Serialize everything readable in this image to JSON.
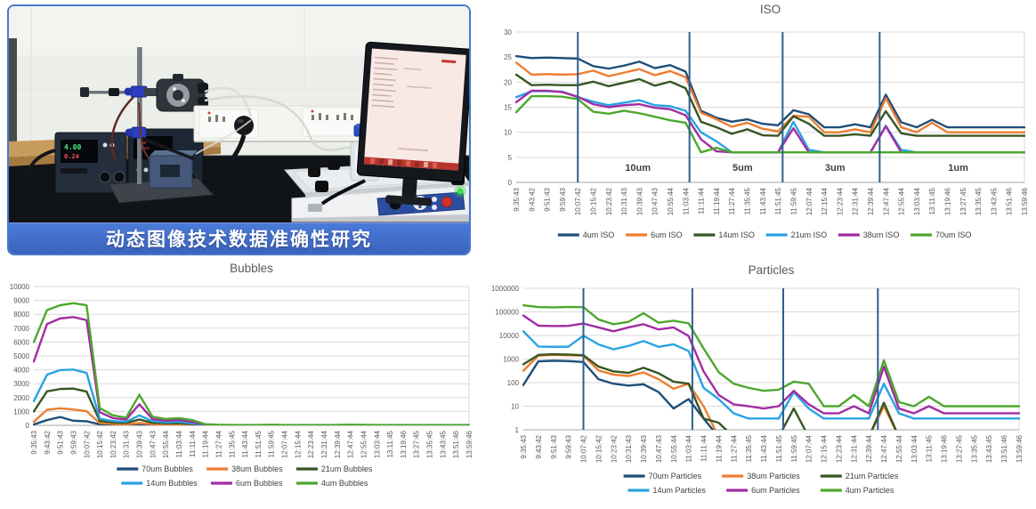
{
  "photo": {
    "caption": "动态图像技术数据准确性研究",
    "banner_color": "#3F69C8",
    "psu_display_green": "4.00",
    "psu_display_red": "0.24"
  },
  "chart_data": {
    "type": "line",
    "x_labels": [
      "9:35:43",
      "9:43:42",
      "9:51:43",
      "9:59:43",
      "10:07:42",
      "10:15:42",
      "10:23:42",
      "10:31:43",
      "10:39:43",
      "10:47:43",
      "10:55:44",
      "11:03:44",
      "11:11:44",
      "11:19:44",
      "11:27:44",
      "11:35:45",
      "11:43:44",
      "11:51:45",
      "11:59:45",
      "12:07:44",
      "12:15:44",
      "12:23:44",
      "12:31:44",
      "12:39:44",
      "12:47:44",
      "12:55:44",
      "13:03:44",
      "13:11:45",
      "13:19:46",
      "13:27:45",
      "13:35:45",
      "13:43:45",
      "13:51:46",
      "13:59:46"
    ],
    "charts": [
      {
        "id": "iso",
        "title": "ISO",
        "yscale": "linear",
        "ylim": [
          0,
          30
        ],
        "yticks": [
          0,
          5,
          10,
          15,
          20,
          25,
          30
        ],
        "legend_rows": 1,
        "markers": {
          "color": "#2E5F8C",
          "positions": [
            4,
            11.25,
            17.3,
            23.6
          ]
        },
        "sections": [
          {
            "label": "10um",
            "pos": 7.9
          },
          {
            "label": "5um",
            "pos": 14.7
          },
          {
            "label": "3um",
            "pos": 20.7
          },
          {
            "label": "1um",
            "pos": 28.7
          }
        ],
        "series": [
          {
            "name": "4um ISO",
            "color": "#1F4E79",
            "values": [
              25.2,
              24.8,
              24.9,
              24.8,
              24.7,
              23.2,
              22.7,
              23.3,
              24.1,
              22.8,
              23.4,
              22.1,
              14.3,
              12.9,
              12.1,
              12.6,
              11.7,
              11.4,
              14.4,
              13.6,
              11,
              11,
              11.6,
              11,
              17.5,
              12,
              11,
              12.5,
              11,
              11,
              11,
              11,
              11,
              11
            ]
          },
          {
            "name": "6um ISO",
            "color": "#ED7D31",
            "values": [
              23.9,
              21.5,
              21.6,
              21.5,
              21.6,
              22.3,
              21.2,
              21.9,
              22.6,
              21.4,
              22.2,
              21,
              13.9,
              12.6,
              11.1,
              11.9,
              10.7,
              10.2,
              13.3,
              13.1,
              10,
              10,
              10.6,
              10,
              16.8,
              11,
              10,
              11.9,
              10,
              10,
              10,
              10,
              10,
              10
            ]
          },
          {
            "name": "14um ISO",
            "color": "#375623",
            "values": [
              21.5,
              19.4,
              19.5,
              19.4,
              19.4,
              20.1,
              19.2,
              19.9,
              20.6,
              19.3,
              20.1,
              18.8,
              12.1,
              11,
              9.7,
              10.6,
              9.4,
              9.3,
              13.2,
              11.7,
              9.3,
              9.3,
              9.6,
              9.3,
              14.2,
              9.8,
              9.3,
              9.3,
              9.3,
              9.3,
              9.3,
              9.3,
              9.3,
              9.3
            ]
          },
          {
            "name": "21um ISO",
            "color": "#29A3E1",
            "values": [
              17,
              18.2,
              18.2,
              18.1,
              17,
              16.1,
              15.4,
              15.9,
              16.4,
              15.4,
              15.2,
              14.3,
              10,
              8.2,
              6,
              6,
              6,
              6,
              12.1,
              6.5,
              6,
              6,
              6,
              6,
              11.3,
              6.5,
              6,
              6,
              6,
              6,
              6,
              6,
              6,
              6
            ]
          },
          {
            "name": "38um ISO",
            "color": "#A32CA3",
            "values": [
              16,
              18.3,
              18.3,
              18,
              17.1,
              15.6,
              15,
              15.4,
              15.6,
              14.9,
              14.6,
              13.4,
              8.6,
              6.2,
              6,
              6,
              6,
              6,
              10.8,
              6,
              6,
              6,
              6,
              6,
              11.2,
              6,
              6,
              6,
              6,
              6,
              6,
              6,
              6,
              6
            ]
          },
          {
            "name": "70um ISO",
            "color": "#4EA72E",
            "values": [
              14,
              17.2,
              17.2,
              17.1,
              16.6,
              14.1,
              13.7,
              14.3,
              13.8,
              13.1,
              12.4,
              11.9,
              6,
              6.9,
              6,
              6,
              6,
              6,
              6,
              6,
              6,
              6,
              6,
              6,
              6,
              6,
              6,
              6,
              6,
              6,
              6,
              6,
              6,
              6
            ]
          }
        ]
      },
      {
        "id": "bubbles",
        "title": "Bubbles",
        "yscale": "linear",
        "ylim": [
          0,
          10000
        ],
        "yticks": [
          0,
          1000,
          2000,
          3000,
          4000,
          5000,
          6000,
          7000,
          8000,
          9000,
          10000
        ],
        "legend_rows": 2,
        "series": [
          {
            "name": "70um Bubbles",
            "color": "#1F4E79",
            "values": [
              60,
              380,
              600,
              330,
              290,
              70,
              35,
              25,
              60,
              25,
              18,
              15,
              8,
              3,
              2,
              2,
              2,
              2,
              3,
              2,
              2,
              2,
              2,
              2,
              2,
              2,
              2,
              2,
              2,
              2,
              2,
              2,
              2,
              2
            ]
          },
          {
            "name": "38um Bubbles",
            "color": "#ED7D31",
            "values": [
              260,
              1120,
              1230,
              1140,
              1020,
              160,
              100,
              80,
              160,
              85,
              60,
              70,
              45,
              10,
              5,
              4,
              4,
              4,
              6,
              4,
              4,
              4,
              4,
              4,
              5,
              4,
              4,
              4,
              4,
              4,
              4,
              4,
              4,
              4
            ]
          },
          {
            "name": "21um Bubbles",
            "color": "#375623",
            "values": [
              1000,
              2450,
              2620,
              2650,
              2430,
              320,
              210,
              180,
              420,
              190,
              140,
              160,
              100,
              22,
              10,
              8,
              8,
              8,
              12,
              8,
              8,
              8,
              8,
              8,
              10,
              8,
              8,
              8,
              8,
              8,
              8,
              8,
              8,
              8
            ]
          },
          {
            "name": "14um Bubbles",
            "color": "#29A3E1",
            "values": [
              1750,
              3650,
              3980,
              4020,
              3780,
              480,
              310,
              260,
              720,
              300,
              210,
              260,
              150,
              35,
              15,
              12,
              12,
              12,
              18,
              12,
              12,
              12,
              12,
              12,
              15,
              12,
              12,
              12,
              12,
              12,
              12,
              12,
              12,
              12
            ]
          },
          {
            "name": "6um Bubbles",
            "color": "#A32CA3",
            "values": [
              4600,
              7300,
              7700,
              7800,
              7580,
              950,
              520,
              420,
              1520,
              450,
              330,
              380,
              250,
              55,
              25,
              18,
              18,
              18,
              28,
              18,
              18,
              18,
              18,
              18,
              30,
              20,
              18,
              18,
              18,
              18,
              18,
              18,
              18,
              18
            ]
          },
          {
            "name": "4um Bubbles",
            "color": "#4EA72E",
            "values": [
              6000,
              8300,
              8650,
              8800,
              8650,
              1250,
              720,
              560,
              2200,
              620,
              460,
              520,
              380,
              85,
              40,
              30,
              28,
              28,
              45,
              30,
              28,
              28,
              30,
              28,
              55,
              35,
              28,
              28,
              30,
              28,
              28,
              28,
              28,
              28
            ]
          }
        ]
      },
      {
        "id": "particles",
        "title": "Particles",
        "yscale": "log",
        "ylim": [
          1,
          1000000
        ],
        "yticks": [
          1,
          10,
          100,
          1000,
          10000,
          100000,
          1000000
        ],
        "legend_rows": 2,
        "markers": {
          "color": "#2E5F8C",
          "positions": [
            4,
            11.25,
            17.3,
            23.6
          ]
        },
        "series": [
          {
            "name": "70um Particles",
            "color": "#1F4E79",
            "values": [
              80,
              800,
              850,
              820,
              750,
              140,
              90,
              75,
              85,
              40,
              8,
              20,
              3,
              0.5,
              null,
              null,
              null,
              null,
              null,
              null,
              null,
              null,
              null,
              null,
              null,
              null,
              null,
              null,
              null,
              null,
              null,
              null,
              null,
              null
            ]
          },
          {
            "name": "38um Particles",
            "color": "#ED7D31",
            "values": [
              320,
              1400,
              1500,
              1450,
              1380,
              330,
              220,
              190,
              270,
              140,
              55,
              90,
              10,
              0.5,
              null,
              null,
              null,
              null,
              null,
              null,
              null,
              null,
              null,
              0.5,
              10,
              0.5,
              null,
              null,
              null,
              null,
              null,
              null,
              null,
              null
            ]
          },
          {
            "name": "21um Particles",
            "color": "#375623",
            "values": [
              600,
              1500,
              1600,
              1550,
              1450,
              480,
              300,
              260,
              430,
              250,
              110,
              90,
              3,
              2,
              0.5,
              null,
              null,
              0.5,
              8,
              0.5,
              null,
              null,
              null,
              0.5,
              14,
              0.5,
              null,
              null,
              null,
              null,
              null,
              null,
              null,
              null
            ]
          },
          {
            "name": "14um Particles",
            "color": "#29A3E1",
            "values": [
              15000,
              3400,
              3300,
              3350,
              9800,
              4200,
              2600,
              3600,
              5800,
              3300,
              4200,
              2200,
              60,
              20,
              5,
              3,
              3,
              3,
              40,
              8,
              3,
              3,
              3,
              3,
              90,
              5,
              3,
              3,
              3,
              3,
              3,
              3,
              3,
              3
            ]
          },
          {
            "name": "6um Particles",
            "color": "#A32CA3",
            "values": [
              70000,
              26000,
              25000,
              25500,
              32000,
              22000,
              15000,
              22000,
              30000,
              18000,
              22000,
              9500,
              300,
              30,
              12,
              10,
              8,
              10,
              45,
              12,
              5,
              5,
              10,
              5,
              480,
              8,
              5,
              10,
              5,
              5,
              5,
              5,
              5,
              5
            ]
          },
          {
            "name": "4um Particles",
            "color": "#4EA72E",
            "values": [
              190000,
              160000,
              155000,
              162000,
              158000,
              48000,
              30000,
              38000,
              88000,
              35000,
              42000,
              33000,
              2800,
              280,
              90,
              60,
              45,
              50,
              110,
              90,
              10,
              10,
              30,
              10,
              880,
              15,
              10,
              25,
              10,
              10,
              10,
              10,
              10,
              10
            ]
          }
        ]
      }
    ]
  }
}
